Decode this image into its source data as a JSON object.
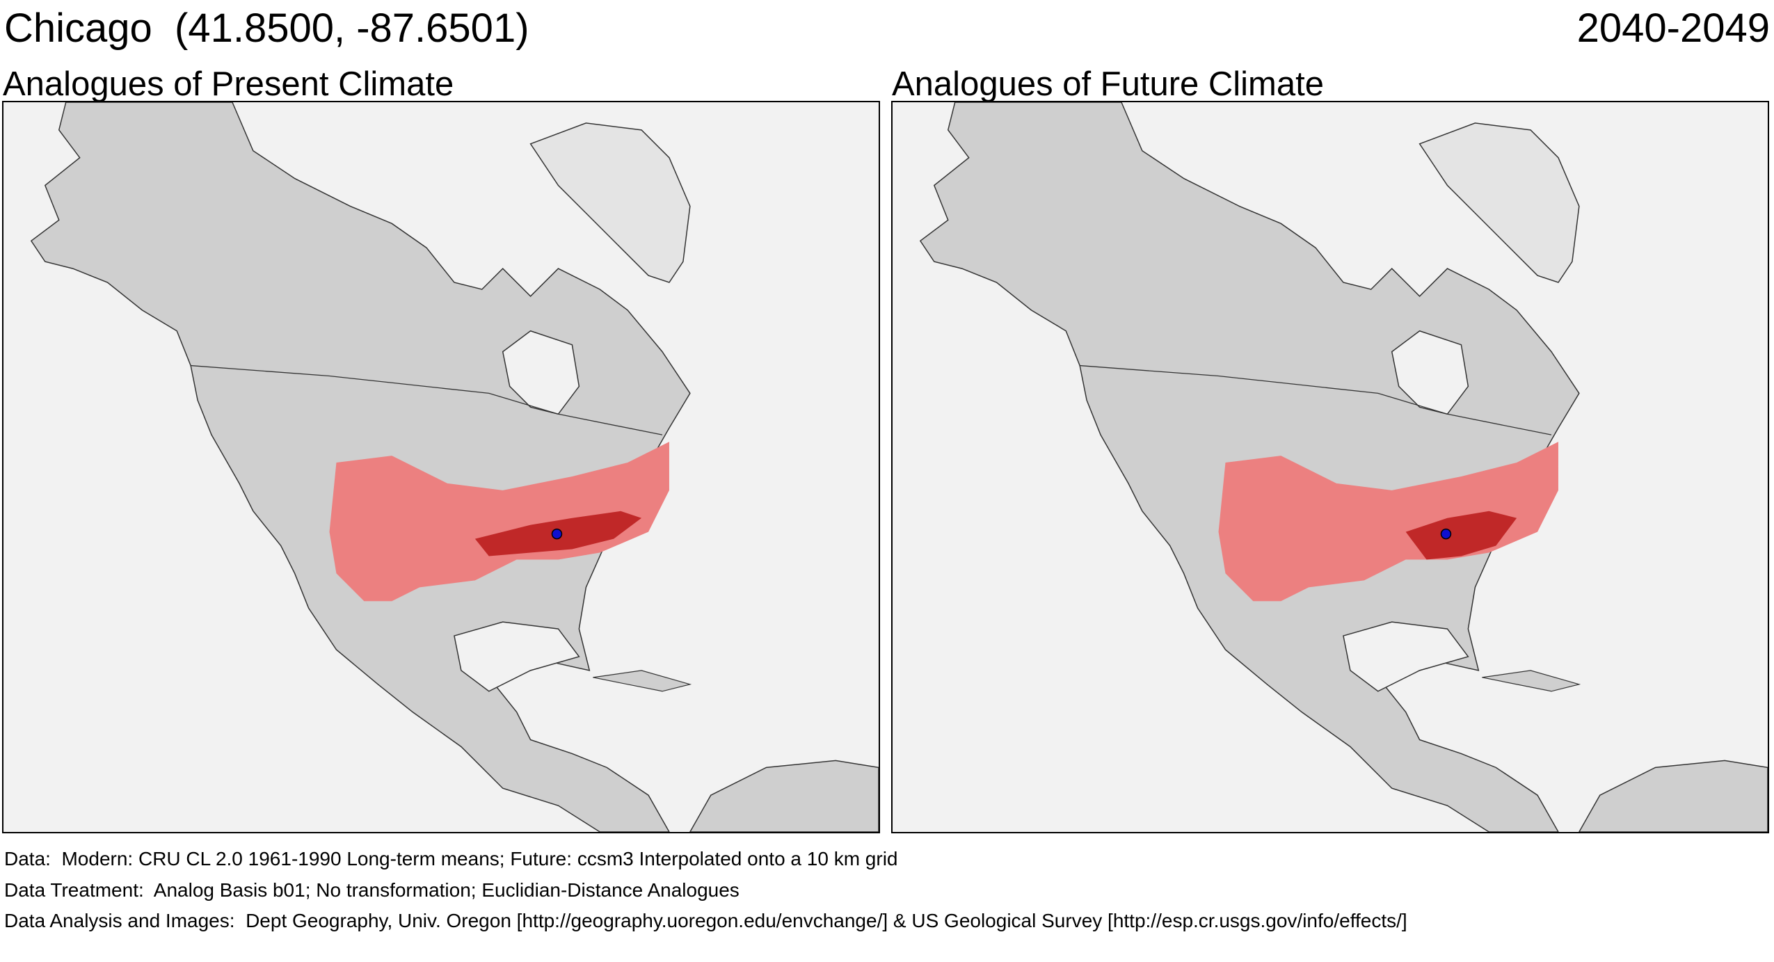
{
  "header": {
    "location": "Chicago  (41.8500, -87.6501)",
    "period": "2040-2049"
  },
  "panels": [
    {
      "title": "Analogues of Present Climate"
    },
    {
      "title": "Analogues of Future Climate"
    }
  ],
  "footer": {
    "data_line": "Data:  Modern: CRU CL 2.0 1961-1990 Long-term means; Future: ccsm3 Interpolated onto a 10 km grid",
    "treatment_line": "Data Treatment:  Analog Basis b01; No transformation; Euclidian-Distance Analogues",
    "analysis_line": "Data Analysis and Images:  Dept Geography, Univ. Oregon [http://geography.uoregon.edu/envchange/] & US Geological Survey [http://esp.cr.usgs.gov/info/effects/]"
  },
  "colors": {
    "ocean": "#f2f2f2",
    "land": "#cfcfcf",
    "analog_light": "#ec8080",
    "analog_dark": "#c02828",
    "location_marker": "#1010d0"
  },
  "icons": {
    "location_marker": "blue-dot"
  }
}
